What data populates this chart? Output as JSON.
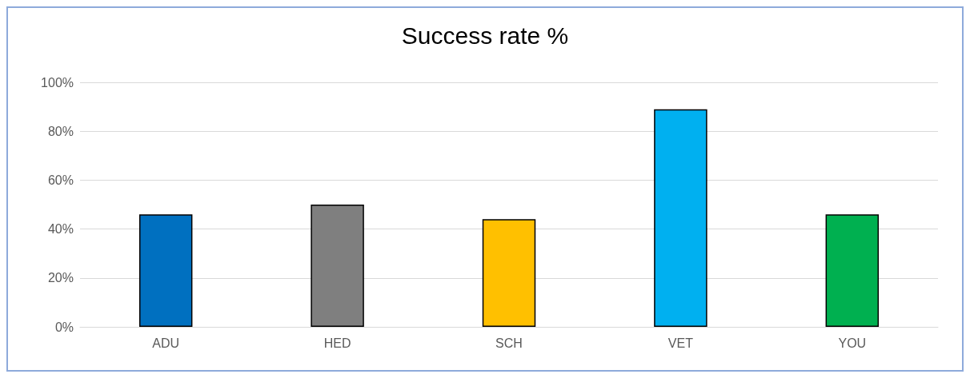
{
  "chart_data": {
    "type": "bar",
    "title": "Success rate %",
    "categories": [
      "ADU",
      "HED",
      "SCH",
      "VET",
      "YOU"
    ],
    "values": [
      46,
      50,
      44,
      89,
      46
    ],
    "colors": [
      "#0070c0",
      "#7f7f7f",
      "#ffc000",
      "#00b0f0",
      "#00b050"
    ],
    "ylim": [
      0,
      100
    ],
    "yticks": [
      {
        "value": 0,
        "label": "0%"
      },
      {
        "value": 20,
        "label": "20%"
      },
      {
        "value": 40,
        "label": "40%"
      },
      {
        "value": 60,
        "label": "60%"
      },
      {
        "value": 80,
        "label": "80%"
      },
      {
        "value": 100,
        "label": "100%"
      }
    ],
    "grid": "y"
  }
}
